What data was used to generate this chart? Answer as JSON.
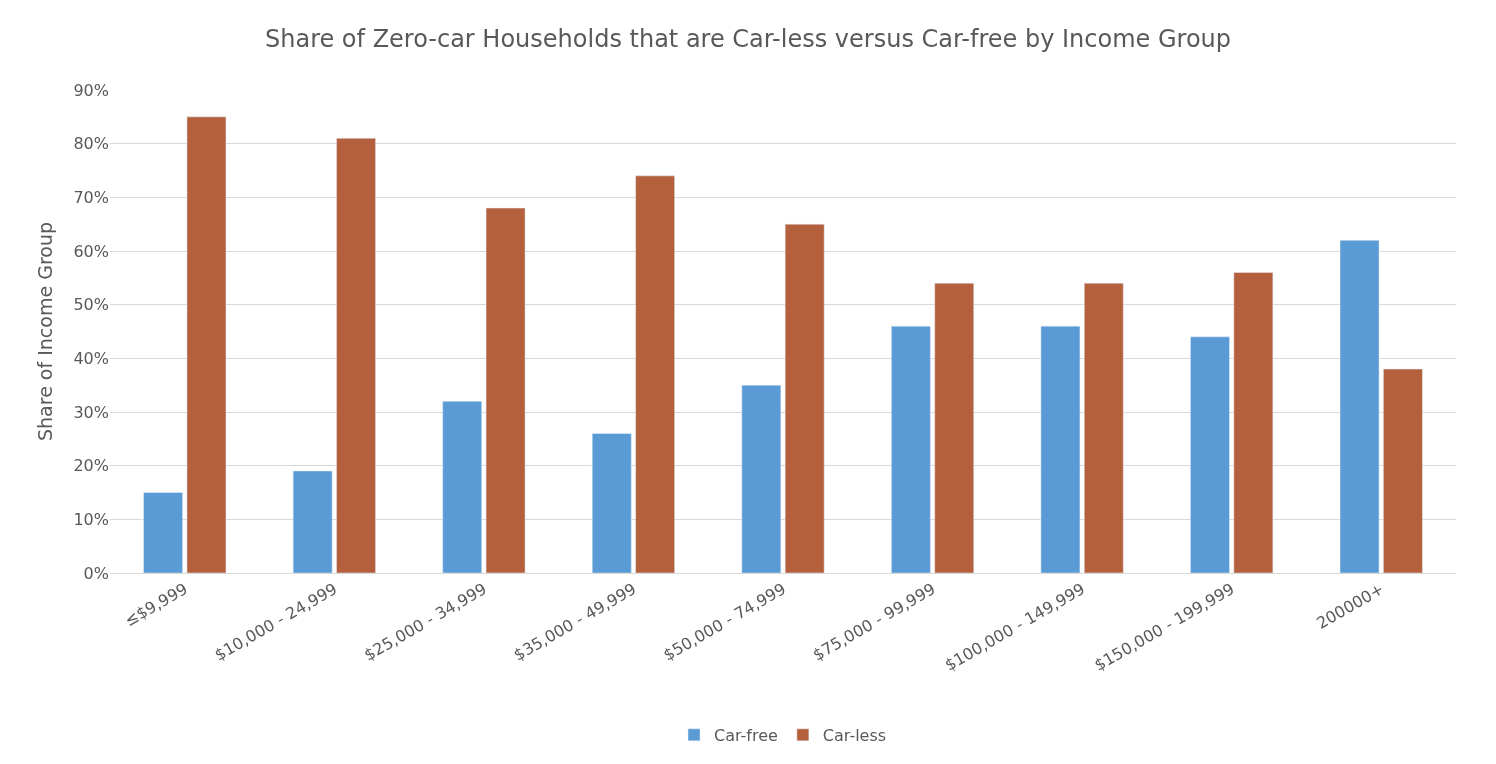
{
  "chart_data": {
    "type": "bar",
    "title": "Share of Zero-car Households that are Car-less versus Car-free by Income Group",
    "ylabel": "Share of Income Group",
    "categories": [
      "≤$9,999",
      "$10,000 - 24,999",
      "$25,000 - 34,999",
      "$35,000 - 49,999",
      "$50,000 - 74,999",
      "$75,000 - 99,999",
      "$100,000 - 149,999",
      "$150,000 - 199,999",
      "200000+"
    ],
    "series": [
      {
        "name": "Car-free",
        "color": "#5b9bd5",
        "values": [
          15,
          19,
          32,
          26,
          35,
          46,
          46,
          44,
          62
        ]
      },
      {
        "name": "Car-less",
        "color": "#b5603d",
        "values": [
          85,
          81,
          68,
          74,
          65,
          54,
          54,
          56,
          38
        ]
      }
    ],
    "ylim": [
      0,
      90
    ],
    "yticks": [
      {
        "value": 0,
        "label": "0%"
      },
      {
        "value": 10,
        "label": "10%"
      },
      {
        "value": 20,
        "label": "20%"
      },
      {
        "value": 30,
        "label": "30%"
      },
      {
        "value": 40,
        "label": "40%"
      },
      {
        "value": 50,
        "label": "50%"
      },
      {
        "value": 60,
        "label": "60%"
      },
      {
        "value": 70,
        "label": "70%"
      },
      {
        "value": 80,
        "label": "80%"
      },
      {
        "value": 90,
        "label": "90%"
      }
    ],
    "grid": "y",
    "legend": "bottom"
  }
}
